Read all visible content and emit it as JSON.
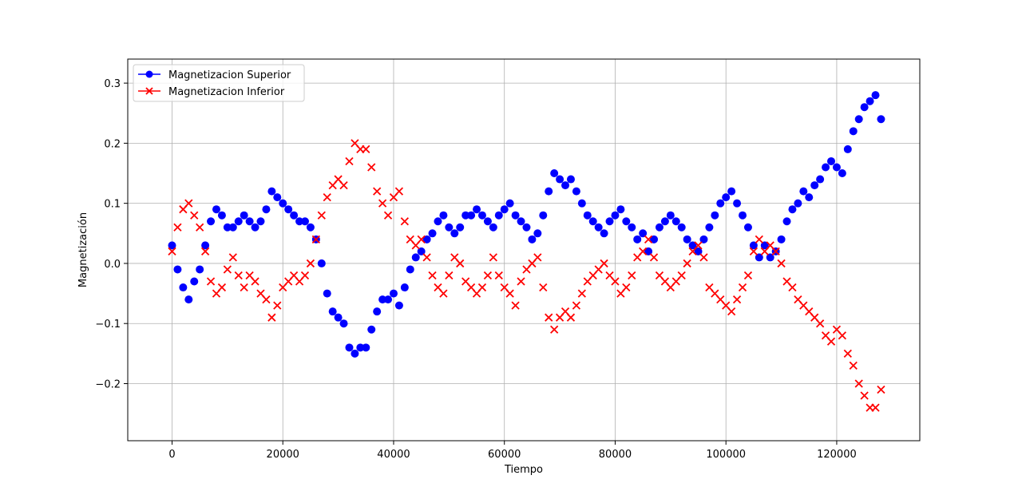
{
  "chart_data": {
    "type": "scatter",
    "xlabel": "Tiempo",
    "ylabel": "Magnetización",
    "xlim": [
      -8000,
      135000
    ],
    "ylim": [
      -0.295,
      0.34
    ],
    "xticks": [
      0,
      20000,
      40000,
      60000,
      80000,
      100000,
      120000
    ],
    "xtick_labels": [
      "0",
      "20000",
      "40000",
      "60000",
      "80000",
      "100000",
      "120000"
    ],
    "yticks": [
      -0.2,
      -0.1,
      0.0,
      0.1,
      0.2,
      0.3
    ],
    "ytick_labels": [
      "−0.2",
      "−0.1",
      "0.0",
      "0.1",
      "0.2",
      "0.3"
    ],
    "grid": true,
    "legend_position": "upper-left",
    "series": [
      {
        "name": "Magnetizacion Superior",
        "color": "#0000ff",
        "marker": "circle",
        "x": [
          0,
          1000,
          2000,
          3000,
          4000,
          5000,
          6000,
          7000,
          8000,
          9000,
          10000,
          11000,
          12000,
          13000,
          14000,
          15000,
          16000,
          17000,
          18000,
          19000,
          20000,
          21000,
          22000,
          23000,
          24000,
          25000,
          26000,
          27000,
          28000,
          29000,
          30000,
          31000,
          32000,
          33000,
          34000,
          35000,
          36000,
          37000,
          38000,
          39000,
          40000,
          41000,
          42000,
          43000,
          44000,
          45000,
          46000,
          47000,
          48000,
          49000,
          50000,
          51000,
          52000,
          53000,
          54000,
          55000,
          56000,
          57000,
          58000,
          59000,
          60000,
          61000,
          62000,
          63000,
          64000,
          65000,
          66000,
          67000,
          68000,
          69000,
          70000,
          71000,
          72000,
          73000,
          74000,
          75000,
          76000,
          77000,
          78000,
          79000,
          80000,
          81000,
          82000,
          83000,
          84000,
          85000,
          86000,
          87000,
          88000,
          89000,
          90000,
          91000,
          92000,
          93000,
          94000,
          95000,
          96000,
          97000,
          98000,
          99000,
          100000,
          101000,
          102000,
          103000,
          104000,
          105000,
          106000,
          107000,
          108000,
          109000,
          110000,
          111000,
          112000,
          113000,
          114000,
          115000,
          116000,
          117000,
          118000,
          119000,
          120000,
          121000,
          122000,
          123000,
          124000,
          125000,
          126000,
          127000,
          128000
        ],
        "y": [
          0.03,
          -0.01,
          -0.04,
          -0.06,
          -0.03,
          -0.01,
          0.03,
          0.07,
          0.09,
          0.08,
          0.06,
          0.06,
          0.07,
          0.08,
          0.07,
          0.06,
          0.07,
          0.09,
          0.12,
          0.11,
          0.1,
          0.09,
          0.08,
          0.07,
          0.07,
          0.06,
          0.04,
          0.0,
          -0.05,
          -0.08,
          -0.09,
          -0.1,
          -0.14,
          -0.15,
          -0.14,
          -0.14,
          -0.11,
          -0.08,
          -0.06,
          -0.06,
          -0.05,
          -0.07,
          -0.04,
          -0.01,
          0.01,
          0.02,
          0.04,
          0.05,
          0.07,
          0.08,
          0.06,
          0.05,
          0.06,
          0.08,
          0.08,
          0.09,
          0.08,
          0.07,
          0.06,
          0.08,
          0.09,
          0.1,
          0.08,
          0.07,
          0.06,
          0.04,
          0.05,
          0.08,
          0.12,
          0.15,
          0.14,
          0.13,
          0.14,
          0.12,
          0.1,
          0.08,
          0.07,
          0.06,
          0.05,
          0.07,
          0.08,
          0.09,
          0.07,
          0.06,
          0.04,
          0.05,
          0.02,
          0.04,
          0.06,
          0.07,
          0.08,
          0.07,
          0.06,
          0.04,
          0.03,
          0.02,
          0.04,
          0.06,
          0.08,
          0.1,
          0.11,
          0.12,
          0.1,
          0.08,
          0.06,
          0.03,
          0.01,
          0.03,
          0.01,
          0.02,
          0.04,
          0.07,
          0.09,
          0.1,
          0.12,
          0.11,
          0.13,
          0.14,
          0.16,
          0.17,
          0.16,
          0.15,
          0.19,
          0.22,
          0.24,
          0.26,
          0.27,
          0.28,
          0.24
        ]
      },
      {
        "name": "Magnetizacion Inferior",
        "color": "#ff0000",
        "marker": "x",
        "x": [
          0,
          1000,
          2000,
          3000,
          4000,
          5000,
          6000,
          7000,
          8000,
          9000,
          10000,
          11000,
          12000,
          13000,
          14000,
          15000,
          16000,
          17000,
          18000,
          19000,
          20000,
          21000,
          22000,
          23000,
          24000,
          25000,
          26000,
          27000,
          28000,
          29000,
          30000,
          31000,
          32000,
          33000,
          34000,
          35000,
          36000,
          37000,
          38000,
          39000,
          40000,
          41000,
          42000,
          43000,
          44000,
          45000,
          46000,
          47000,
          48000,
          49000,
          50000,
          51000,
          52000,
          53000,
          54000,
          55000,
          56000,
          57000,
          58000,
          59000,
          60000,
          61000,
          62000,
          63000,
          64000,
          65000,
          66000,
          67000,
          68000,
          69000,
          70000,
          71000,
          72000,
          73000,
          74000,
          75000,
          76000,
          77000,
          78000,
          79000,
          80000,
          81000,
          82000,
          83000,
          84000,
          85000,
          86000,
          87000,
          88000,
          89000,
          90000,
          91000,
          92000,
          93000,
          94000,
          95000,
          96000,
          97000,
          98000,
          99000,
          100000,
          101000,
          102000,
          103000,
          104000,
          105000,
          106000,
          107000,
          108000,
          109000,
          110000,
          111000,
          112000,
          113000,
          114000,
          115000,
          116000,
          117000,
          118000,
          119000,
          120000,
          121000,
          122000,
          123000,
          124000,
          125000,
          126000,
          127000,
          128000
        ],
        "y": [
          0.02,
          0.06,
          0.09,
          0.1,
          0.08,
          0.06,
          0.02,
          -0.03,
          -0.05,
          -0.04,
          -0.01,
          0.01,
          -0.02,
          -0.04,
          -0.02,
          -0.03,
          -0.05,
          -0.06,
          -0.09,
          -0.07,
          -0.04,
          -0.03,
          -0.02,
          -0.03,
          -0.02,
          0.0,
          0.04,
          0.08,
          0.11,
          0.13,
          0.14,
          0.13,
          0.17,
          0.2,
          0.19,
          0.19,
          0.16,
          0.12,
          0.1,
          0.08,
          0.11,
          0.12,
          0.07,
          0.04,
          0.03,
          0.04,
          0.01,
          -0.02,
          -0.04,
          -0.05,
          -0.02,
          0.01,
          0.0,
          -0.03,
          -0.04,
          -0.05,
          -0.04,
          -0.02,
          0.01,
          -0.02,
          -0.04,
          -0.05,
          -0.07,
          -0.03,
          -0.01,
          0.0,
          0.01,
          -0.04,
          -0.09,
          -0.11,
          -0.09,
          -0.08,
          -0.09,
          -0.07,
          -0.05,
          -0.03,
          -0.02,
          -0.01,
          0.0,
          -0.02,
          -0.03,
          -0.05,
          -0.04,
          -0.02,
          0.01,
          0.02,
          0.04,
          0.01,
          -0.02,
          -0.03,
          -0.04,
          -0.03,
          -0.02,
          0.0,
          0.02,
          0.03,
          0.01,
          -0.04,
          -0.05,
          -0.06,
          -0.07,
          -0.08,
          -0.06,
          -0.04,
          -0.02,
          0.02,
          0.04,
          0.02,
          0.03,
          0.02,
          0.0,
          -0.03,
          -0.04,
          -0.06,
          -0.07,
          -0.08,
          -0.09,
          -0.1,
          -0.12,
          -0.13,
          -0.11,
          -0.12,
          -0.15,
          -0.17,
          -0.2,
          -0.22,
          -0.24,
          -0.24,
          -0.21
        ]
      }
    ]
  }
}
